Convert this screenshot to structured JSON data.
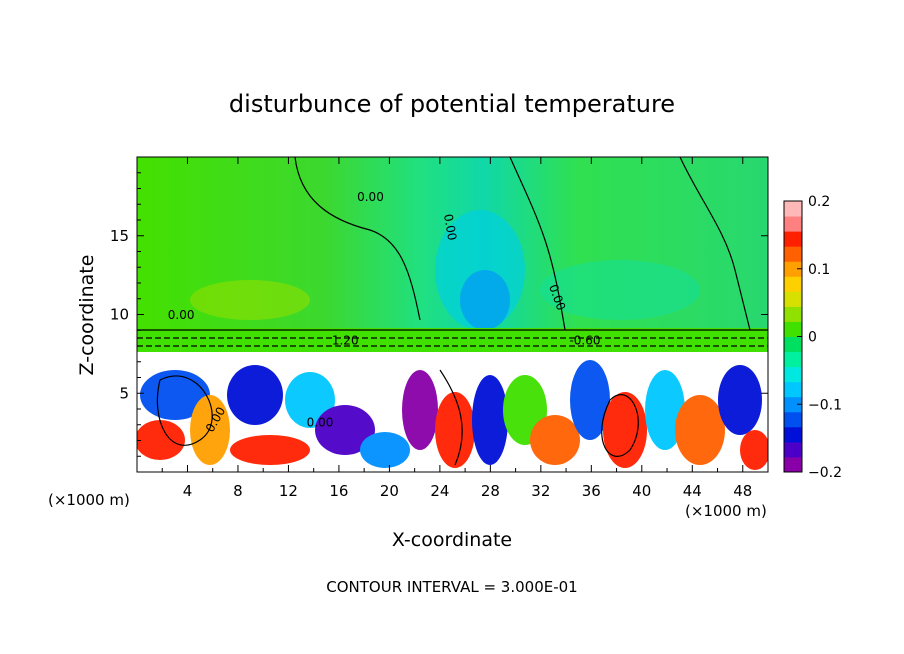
{
  "chart_data": {
    "type": "heatmap",
    "title": "disturbunce of potential temperature",
    "xlabel": "X-coordinate",
    "ylabel": "Z-coordinate",
    "x_unit_left": "(×1000 m)",
    "x_unit_right": "(×1000 m)",
    "xlim": [
      0,
      50
    ],
    "ylim": [
      0,
      20
    ],
    "xticks": [
      4,
      8,
      12,
      16,
      20,
      24,
      28,
      32,
      36,
      40,
      44,
      48
    ],
    "xtick_labels": [
      "4",
      "8",
      "12",
      "16",
      "20",
      "24",
      "28",
      "32",
      "36",
      "40",
      "44",
      "48"
    ],
    "yticks": [
      5,
      10,
      15
    ],
    "ytick_labels": [
      "5",
      "10",
      "15"
    ],
    "colorbar": {
      "min": -0.2,
      "max": 0.2,
      "ticks": [
        0.2,
        0.1,
        0,
        -0.1,
        -0.2
      ],
      "tick_labels": [
        "0.2",
        "0.1",
        "0",
        "−0.1",
        "−0.2"
      ],
      "colors": [
        "#8a00a8",
        "#4b00c8",
        "#0010d8",
        "#0050f0",
        "#0090ff",
        "#00c8ff",
        "#00e8e0",
        "#00f0a0",
        "#00e060",
        "#40e000",
        "#90e000",
        "#d8e000",
        "#ffd000",
        "#ffa000",
        "#ff6000",
        "#ff2000",
        "#ff8080",
        "#ffb8b8"
      ]
    },
    "contour_labels": [
      "0.00",
      "0.00",
      "0.00",
      "0.00",
      "1.20",
      "-0.60",
      "0.00",
      "0.00"
    ],
    "annotation": "CONTOUR INTERVAL = 3.000E-01"
  }
}
